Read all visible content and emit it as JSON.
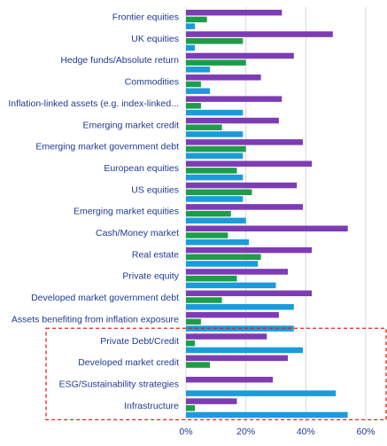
{
  "chart_data": {
    "type": "bar",
    "orientation": "horizontal",
    "title": "",
    "xlabel": "",
    "ylabel": "",
    "xlim": [
      0,
      60
    ],
    "x_ticks": [
      "0%",
      "20%",
      "40%",
      "60%"
    ],
    "grid": true,
    "legend": "none",
    "categories": [
      "Frontier equities",
      "UK equities",
      "Hedge funds/Absolute return",
      "Commodities",
      "Inflation-linked assets (e.g. index-linked...",
      "Emerging market credit",
      "Emerging market government debt",
      "European equities",
      "US equities",
      "Emerging market equities",
      "Cash/Money market",
      "Real estate",
      "Private equity",
      "Developed market government debt",
      "Assets benefiting from inflation exposure",
      "Private Debt/Credit",
      "Developed market credit",
      "ESG/Sustainability strategies",
      "Infrastructure"
    ],
    "series": [
      {
        "color": "#7d3cb5",
        "values": [
          32,
          49,
          36,
          25,
          32,
          31,
          39,
          42,
          37,
          39,
          54,
          42,
          34,
          42,
          31,
          27,
          34,
          29,
          17
        ]
      },
      {
        "color": "#1d9c4a",
        "values": [
          7,
          19,
          20,
          5,
          5,
          12,
          20,
          17,
          22,
          15,
          14,
          25,
          17,
          12,
          5,
          3,
          8,
          0,
          3
        ]
      },
      {
        "color": "#1a9bdc",
        "values": [
          3,
          3,
          8,
          8,
          19,
          19,
          19,
          19,
          19,
          20,
          21,
          24,
          30,
          36,
          36,
          39,
          0,
          50,
          54
        ]
      }
    ],
    "highlight_box": {
      "categories": [
        "Private Debt/Credit",
        "Developed market credit",
        "ESG/Sustainability strategies",
        "Infrastructure"
      ],
      "style": "dashed",
      "color": "#e02020"
    }
  }
}
